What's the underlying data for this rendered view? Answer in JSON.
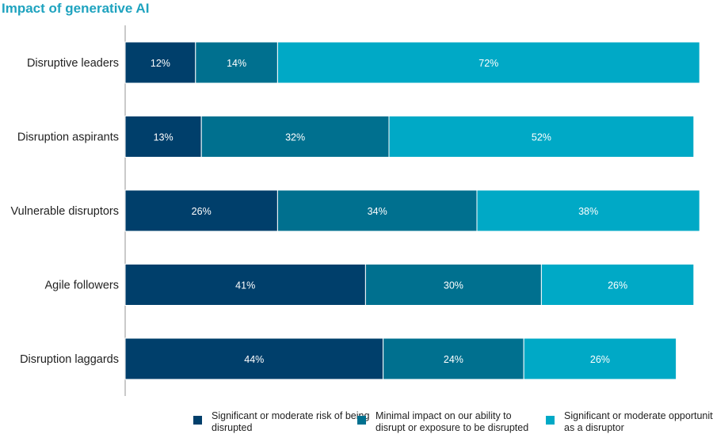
{
  "chart_data": {
    "type": "bar",
    "orientation": "horizontal",
    "stacked": true,
    "title": "Impact of generative AI",
    "categories": [
      "Disruptive leaders",
      "Disruption aspirants",
      "Vulnerable disruptors",
      "Agile followers",
      "Disruption laggards"
    ],
    "series": [
      {
        "name": "Significant or moderate risk of being disrupted",
        "color": "#003f6b",
        "values": [
          12,
          13,
          26,
          41,
          44
        ],
        "labels": [
          "12%",
          "13%",
          "26%",
          "41%",
          "44%"
        ]
      },
      {
        "name": "Minimal impact on our ability to disrupt or exposure to be disrupted",
        "color": "#00708f",
        "values": [
          14,
          32,
          34,
          30,
          24
        ],
        "labels": [
          "14%",
          "32%",
          "34%",
          "30%",
          "24%"
        ]
      },
      {
        "name": "Significant or moderate opportunity as a disruptor",
        "color": "#00a9c6",
        "values": [
          72,
          52,
          38,
          26,
          26
        ],
        "labels": [
          "72%",
          "52%",
          "38%",
          "26%",
          "26%"
        ]
      }
    ],
    "xlim": [
      0,
      100
    ],
    "grid": false,
    "legend_position": "bottom"
  }
}
